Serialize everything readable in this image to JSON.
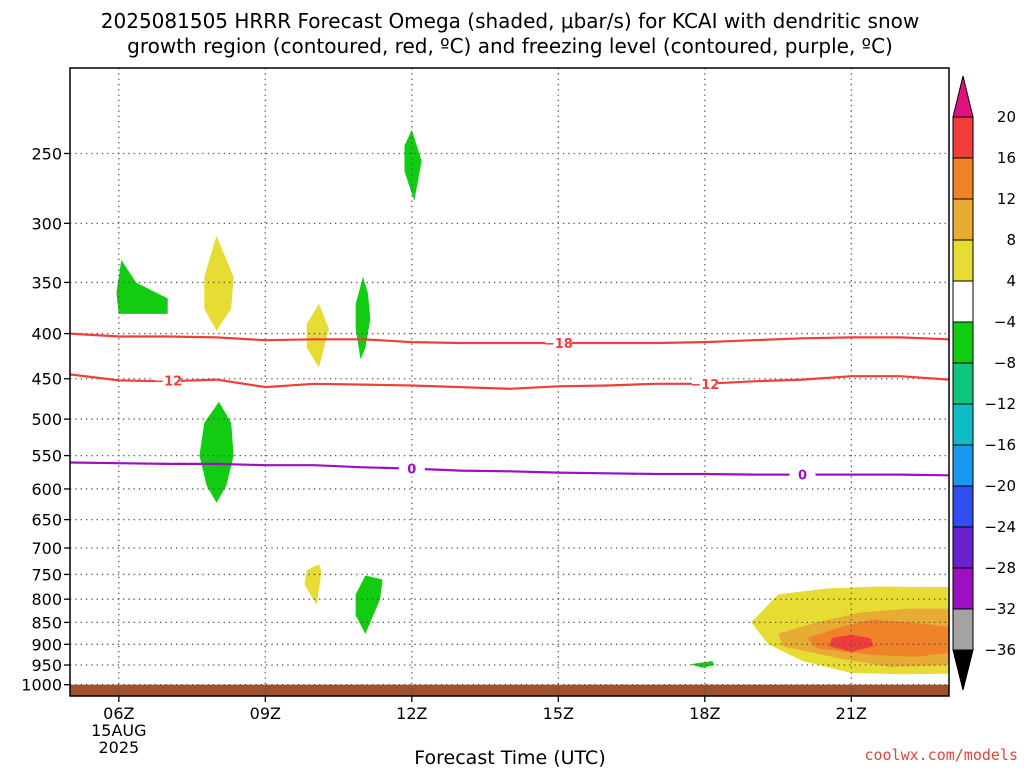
{
  "chart_data": {
    "type": "heatmap",
    "title_lines": [
      "2025081505 HRRR Forecast Omega (shaded, μbar/s) for KCAI with dendritic snow",
      "growth region (contoured, red, ºC) and freezing level (contoured, purple, ºC)"
    ],
    "xlabel": "Forecast Time (UTC)",
    "ylabel": "",
    "credit": "coolwx.com/models",
    "x_range_hours": [
      5,
      23
    ],
    "x_ticks": [
      {
        "hour": 6,
        "label": "06Z",
        "sub": [
          "15AUG",
          "2025"
        ]
      },
      {
        "hour": 9,
        "label": "09Z",
        "sub": []
      },
      {
        "hour": 12,
        "label": "12Z",
        "sub": []
      },
      {
        "hour": 15,
        "label": "15Z",
        "sub": []
      },
      {
        "hour": 18,
        "label": "18Z",
        "sub": []
      },
      {
        "hour": 21,
        "label": "21Z",
        "sub": []
      }
    ],
    "y_scale": "log-pressure",
    "y_range_hpa": [
      1030,
      200
    ],
    "y_ticks": [
      250,
      300,
      350,
      400,
      450,
      500,
      550,
      600,
      650,
      700,
      750,
      800,
      850,
      900,
      950,
      1000
    ],
    "grid": true,
    "ground_level_hpa": 1000,
    "ground_color": "#a0522d",
    "colorbar": {
      "labels": [
        "20",
        "16",
        "12",
        "8",
        "4",
        "−4",
        "−8",
        "−12",
        "−16",
        "−20",
        "−24",
        "−28",
        "−32",
        "−36"
      ],
      "top_arrow_color": "#e0117f",
      "bottom_arrow_color": "#000000",
      "bands": [
        {
          "from": 16,
          "to": 20,
          "color": "#f23c3c"
        },
        {
          "from": 12,
          "to": 16,
          "color": "#f0832a"
        },
        {
          "from": 8,
          "to": 12,
          "color": "#e6ac34"
        },
        {
          "from": 4,
          "to": 8,
          "color": "#e6dc34"
        },
        {
          "from": -4,
          "to": 4,
          "color": "#ffffff"
        },
        {
          "from": -8,
          "to": -4,
          "color": "#11cc11"
        },
        {
          "from": -12,
          "to": -8,
          "color": "#0ec57d"
        },
        {
          "from": -16,
          "to": -12,
          "color": "#10bcc4"
        },
        {
          "from": -20,
          "to": -16,
          "color": "#1a97f0"
        },
        {
          "from": -24,
          "to": -20,
          "color": "#2e4ef0"
        },
        {
          "from": -28,
          "to": -24,
          "color": "#6a22cf"
        },
        {
          "from": -32,
          "to": -28,
          "color": "#9b10c0"
        },
        {
          "from": -36,
          "to": -32,
          "color": "#a3a3a3"
        }
      ]
    },
    "contours": [
      {
        "name": "",
        "color": "#ee3f3c",
        "label": "−18",
        "points": [
          [
            5,
            400
          ],
          [
            6,
            403
          ],
          [
            7,
            403
          ],
          [
            8,
            404
          ],
          [
            9,
            407
          ],
          [
            10,
            406
          ],
          [
            11,
            406
          ],
          [
            12,
            409
          ],
          [
            13,
            410
          ],
          [
            14,
            410
          ],
          [
            15,
            410
          ],
          [
            16,
            410
          ],
          [
            17,
            410
          ],
          [
            18,
            409
          ],
          [
            19,
            407
          ],
          [
            20,
            405
          ],
          [
            21,
            404
          ],
          [
            22,
            404
          ],
          [
            23,
            406
          ]
        ],
        "label_at": [
          15,
          410
        ]
      },
      {
        "name": "",
        "color": "#ee3f3c",
        "label": "−12",
        "points": [
          [
            5,
            445
          ],
          [
            6,
            452
          ],
          [
            7,
            453
          ],
          [
            8,
            451
          ],
          [
            9,
            460
          ],
          [
            10,
            456
          ],
          [
            11,
            457
          ],
          [
            12,
            458
          ],
          [
            13,
            460
          ],
          [
            14,
            462
          ],
          [
            15,
            459
          ],
          [
            16,
            458
          ],
          [
            17,
            456
          ],
          [
            18,
            456
          ],
          [
            19,
            453
          ],
          [
            20,
            451
          ],
          [
            21,
            447
          ],
          [
            22,
            447
          ],
          [
            23,
            451
          ]
        ],
        "label_markers": [
          [
            7,
            452
          ],
          [
            18,
            456
          ]
        ]
      },
      {
        "name": "",
        "color": "#9b10c0",
        "label": "0",
        "points": [
          [
            5,
            560
          ],
          [
            6,
            561
          ],
          [
            7,
            562
          ],
          [
            8,
            562
          ],
          [
            9,
            564
          ],
          [
            10,
            564
          ],
          [
            11,
            567
          ],
          [
            12,
            569
          ],
          [
            13,
            572
          ],
          [
            14,
            573
          ],
          [
            15,
            575
          ],
          [
            16,
            576
          ],
          [
            17,
            577
          ],
          [
            18,
            577
          ],
          [
            19,
            578
          ],
          [
            20,
            578
          ],
          [
            21,
            578
          ],
          [
            22,
            578
          ],
          [
            23,
            579
          ]
        ],
        "label_markers": [
          [
            12,
            569
          ],
          [
            20,
            578
          ]
        ]
      }
    ],
    "omega_regions": [
      {
        "level": -6,
        "color": "#11cc11",
        "points": [
          [
            6.05,
            330
          ],
          [
            6.35,
            350
          ],
          [
            7,
            365
          ],
          [
            7,
            380
          ],
          [
            6,
            380
          ],
          [
            5.95,
            360
          ]
        ]
      },
      {
        "level": -6,
        "color": "#11cc11",
        "points": [
          [
            12,
            235
          ],
          [
            12.2,
            255
          ],
          [
            12.05,
            283
          ],
          [
            11.85,
            262
          ],
          [
            11.85,
            245
          ]
        ]
      },
      {
        "level": -6,
        "color": "#11cc11",
        "points": [
          [
            11,
            345
          ],
          [
            11.1,
            360
          ],
          [
            11.15,
            385
          ],
          [
            11.05,
            415
          ],
          [
            10.95,
            428
          ],
          [
            10.85,
            395
          ],
          [
            10.85,
            370
          ]
        ]
      },
      {
        "level": -6,
        "color": "#11cc11",
        "points": [
          [
            8.05,
            478
          ],
          [
            8.3,
            505
          ],
          [
            8.35,
            550
          ],
          [
            8.2,
            595
          ],
          [
            8,
            622
          ],
          [
            7.8,
            595
          ],
          [
            7.65,
            550
          ],
          [
            7.75,
            505
          ]
        ]
      },
      {
        "level": -6,
        "color": "#11cc11",
        "points": [
          [
            11.05,
            752
          ],
          [
            11.4,
            760
          ],
          [
            11.35,
            800
          ],
          [
            11.05,
            876
          ],
          [
            10.85,
            835
          ],
          [
            10.85,
            790
          ]
        ]
      },
      {
        "level": -6,
        "color": "#11cc11",
        "points": [
          [
            17.7,
            948
          ],
          [
            18.15,
            940
          ],
          [
            18.2,
            950
          ],
          [
            17.95,
            957
          ]
        ]
      },
      {
        "level": 6,
        "color": "#e6dc34",
        "points": [
          [
            8,
            310
          ],
          [
            8.35,
            345
          ],
          [
            8.3,
            375
          ],
          [
            8,
            397
          ],
          [
            7.75,
            375
          ],
          [
            7.75,
            345
          ]
        ]
      },
      {
        "level": 6,
        "color": "#e6dc34",
        "points": [
          [
            10.1,
            370
          ],
          [
            10.3,
            395
          ],
          [
            10.1,
            437
          ],
          [
            9.85,
            415
          ],
          [
            9.85,
            390
          ]
        ]
      },
      {
        "level": 6,
        "color": "#e6dc34",
        "points": [
          [
            10.1,
            730
          ],
          [
            10.15,
            745
          ],
          [
            10.05,
            812
          ],
          [
            9.8,
            770
          ],
          [
            9.85,
            742
          ]
        ]
      },
      {
        "level": 6,
        "color": "#e6dc34",
        "points": [
          [
            19.5,
            790
          ],
          [
            20.5,
            778
          ],
          [
            21.5,
            774
          ],
          [
            22.5,
            775
          ],
          [
            23,
            775
          ],
          [
            23,
            972
          ],
          [
            22,
            973
          ],
          [
            21,
            970
          ],
          [
            20,
            940
          ],
          [
            19.3,
            900
          ],
          [
            18.95,
            850
          ]
        ]
      },
      {
        "level": 10,
        "color": "#e6ac34",
        "points": [
          [
            20.3,
            850
          ],
          [
            21.2,
            828
          ],
          [
            22.2,
            820
          ],
          [
            23,
            820
          ],
          [
            23,
            950
          ],
          [
            21.8,
            955
          ],
          [
            20.8,
            935
          ],
          [
            19.6,
            905
          ],
          [
            19.5,
            875
          ]
        ]
      },
      {
        "level": 14,
        "color": "#f0832a",
        "points": [
          [
            20.8,
            860
          ],
          [
            21.4,
            843
          ],
          [
            22.2,
            850
          ],
          [
            23,
            860
          ],
          [
            23,
            920
          ],
          [
            22.3,
            930
          ],
          [
            21.4,
            925
          ],
          [
            20.3,
            910
          ],
          [
            20.1,
            885
          ]
        ]
      },
      {
        "level": 18,
        "color": "#f23c3c",
        "points": [
          [
            21,
            878
          ],
          [
            21.4,
            886
          ],
          [
            21.45,
            905
          ],
          [
            21,
            918
          ],
          [
            20.55,
            905
          ],
          [
            20.6,
            885
          ]
        ]
      }
    ]
  }
}
